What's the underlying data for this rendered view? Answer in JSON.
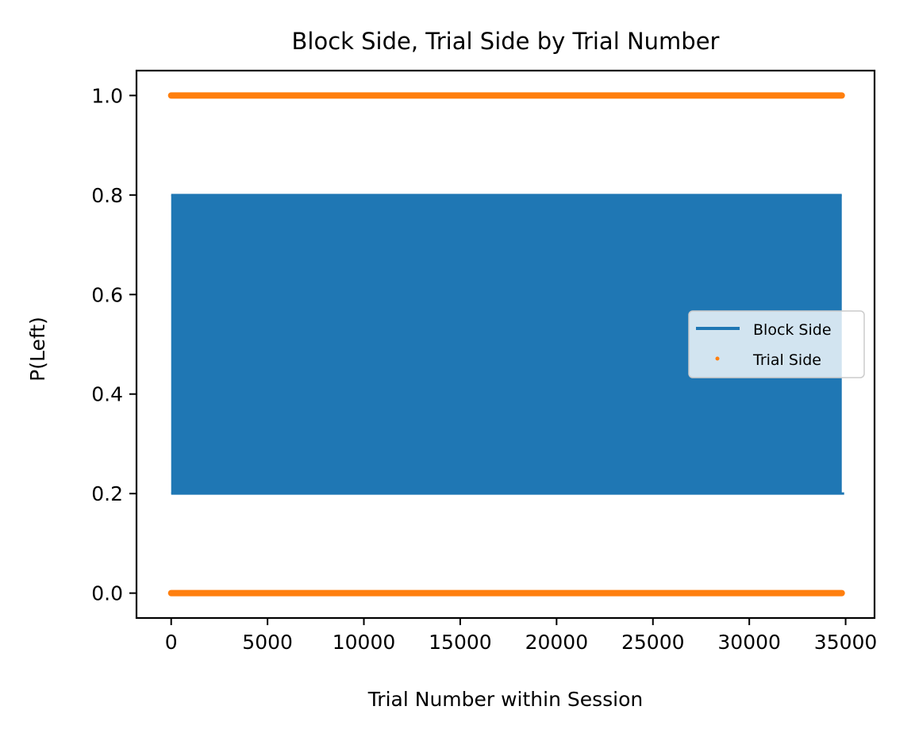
{
  "chart_data": {
    "type": "line",
    "title": "Block Side, Trial Side by Trial Number",
    "xlabel": "Trial Number within Session",
    "ylabel": "P(Left)",
    "xlim": [
      -1800,
      36500
    ],
    "ylim": [
      -0.05,
      1.05
    ],
    "xticks": [
      0,
      5000,
      10000,
      15000,
      20000,
      25000,
      30000,
      35000
    ],
    "xtick_labels": [
      "0",
      "5000",
      "10000",
      "15000",
      "20000",
      "25000",
      "30000",
      "35000"
    ],
    "yticks": [
      0.0,
      0.2,
      0.4,
      0.6,
      0.8,
      1.0
    ],
    "ytick_labels": [
      "0.0",
      "0.2",
      "0.4",
      "0.6",
      "0.8",
      "1.0"
    ],
    "grid": false,
    "legend": {
      "placement": "center-right",
      "entries": [
        "Block Side",
        "Trial Side"
      ]
    },
    "series": [
      {
        "name": "Block Side",
        "kind": "line",
        "color": "#1f77b4",
        "description_values": [
          0.2,
          0.8
        ],
        "x_range": [
          0,
          34800
        ],
        "pattern": "alternates between 0.2 and 0.8 at every block switch across all trials"
      },
      {
        "name": "Trial Side",
        "kind": "scatter",
        "color": "#ff7f0e",
        "description_values": [
          0.0,
          1.0
        ],
        "x_range": [
          0,
          34800
        ],
        "pattern": "binary 0 or 1 for every trial"
      }
    ]
  }
}
